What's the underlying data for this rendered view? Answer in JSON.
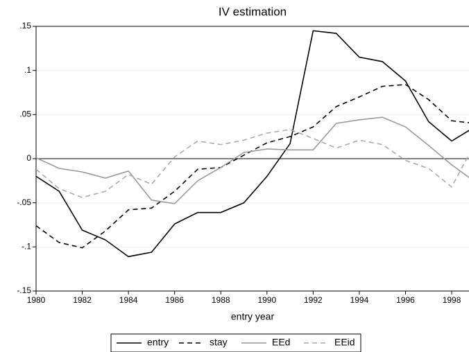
{
  "chart_data": {
    "type": "line",
    "title": "IV estimation",
    "x_label": "entry year",
    "x": [
      1980,
      1981,
      1982,
      1983,
      1984,
      1985,
      1986,
      1987,
      1988,
      1989,
      1990,
      1991,
      1992,
      1993,
      1994,
      1995,
      1996,
      1997,
      1998,
      1999
    ],
    "series": [
      {
        "name": "entry",
        "color": "#000000",
        "dashed": false,
        "values": [
          -0.02,
          -0.037,
          -0.081,
          -0.092,
          -0.111,
          -0.106,
          -0.074,
          -0.061,
          -0.061,
          -0.05,
          -0.02,
          0.017,
          0.145,
          0.142,
          0.115,
          0.11,
          0.088,
          0.042,
          0.02,
          0.036
        ]
      },
      {
        "name": "stay",
        "color": "#000000",
        "dashed": true,
        "values": [
          -0.076,
          -0.095,
          -0.101,
          -0.082,
          -0.058,
          -0.056,
          -0.037,
          -0.012,
          -0.01,
          0.004,
          0.018,
          0.025,
          0.036,
          0.059,
          0.07,
          0.082,
          0.084,
          0.067,
          0.043,
          0.04
        ]
      },
      {
        "name": "EEd",
        "color": "#999999",
        "dashed": false,
        "values": [
          0.001,
          -0.011,
          -0.015,
          -0.022,
          -0.014,
          -0.047,
          -0.051,
          -0.025,
          -0.01,
          0.007,
          0.011,
          0.01,
          0.01,
          0.04,
          0.044,
          0.047,
          0.036,
          0.015,
          -0.007,
          -0.026
        ]
      },
      {
        "name": "EEid",
        "color": "#aaaaaa",
        "dashed": true,
        "values": [
          -0.012,
          -0.034,
          -0.044,
          -0.037,
          -0.018,
          -0.029,
          0.002,
          0.02,
          0.016,
          0.021,
          0.029,
          0.033,
          0.023,
          0.012,
          0.021,
          0.016,
          -0.002,
          -0.011,
          -0.032,
          0.017
        ]
      }
    ],
    "xlim": [
      1980,
      1998.75
    ],
    "xticks": [
      1980,
      1982,
      1984,
      1986,
      1988,
      1990,
      1992,
      1994,
      1996,
      1998
    ],
    "ylim": [
      -0.15,
      0.15
    ],
    "yticks": [
      {
        "value": -0.15,
        "label": "-.15"
      },
      {
        "value": -0.1,
        "label": "-.1"
      },
      {
        "value": -0.05,
        "label": "-.05"
      },
      0,
      {
        "value": 0.05,
        "label": ".05"
      },
      {
        "value": 0.1,
        "label": ".1"
      },
      {
        "value": 0.15,
        "label": ".15"
      }
    ],
    "grid": true,
    "zero_line": true,
    "legend": "bottom"
  }
}
